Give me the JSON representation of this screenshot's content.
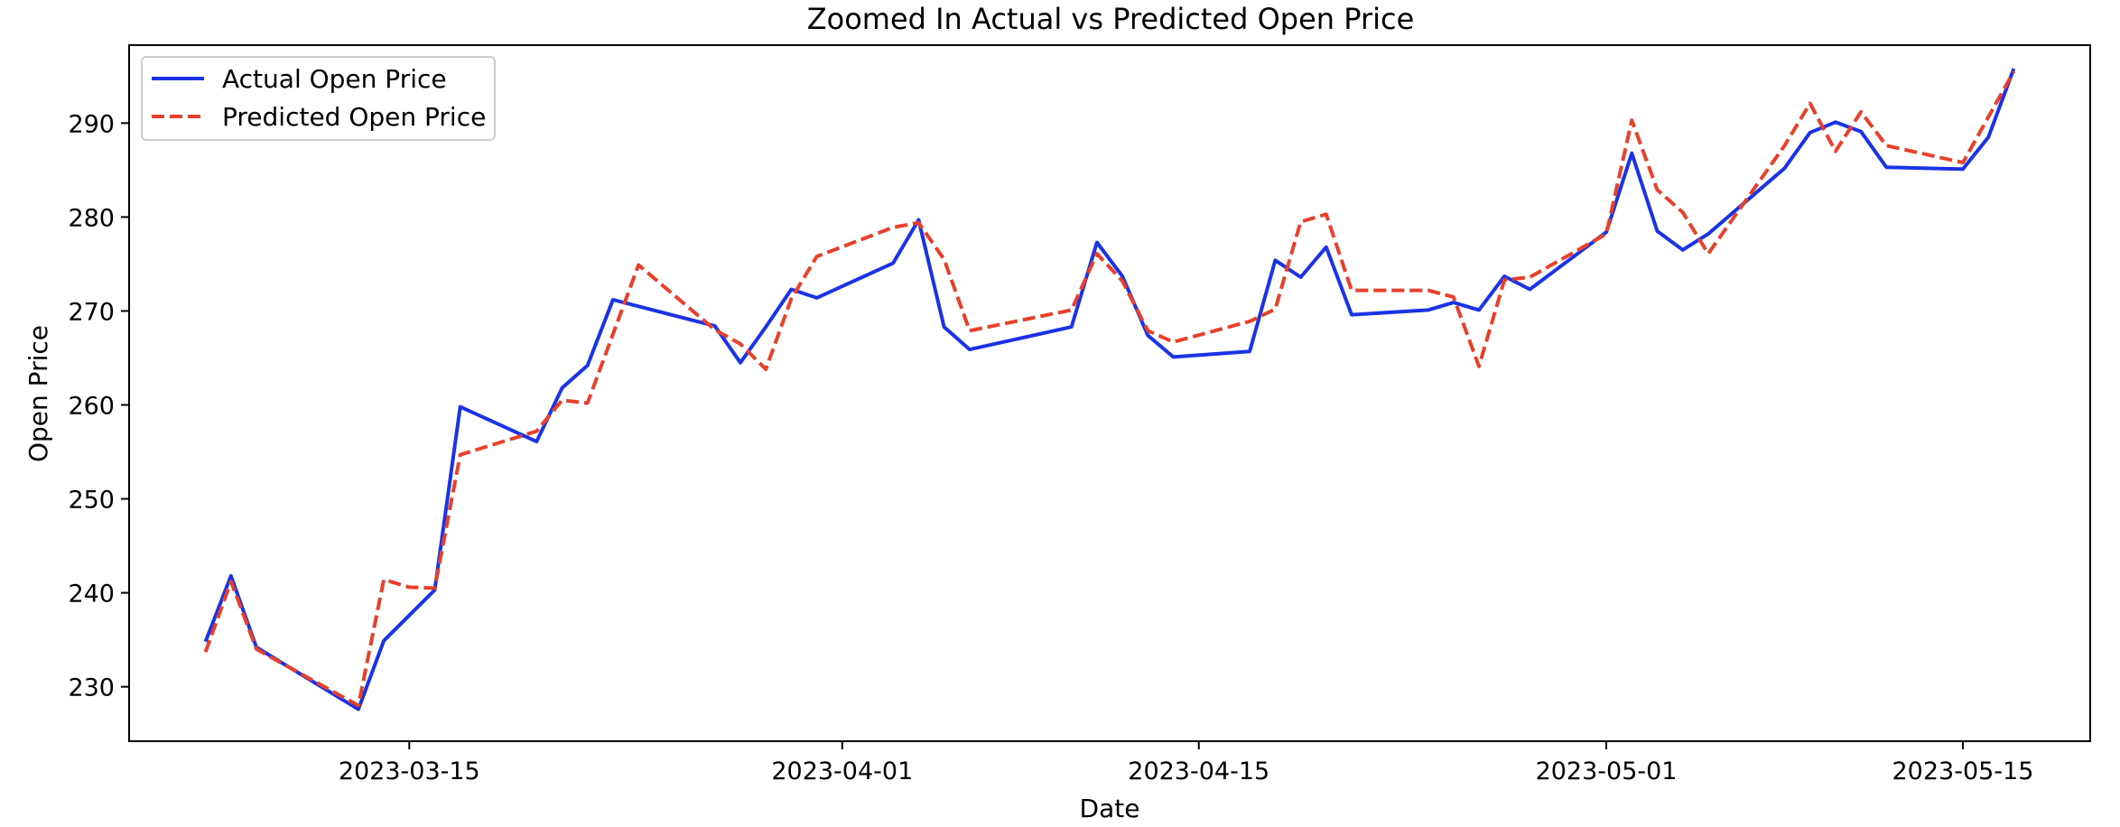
{
  "chart_data": {
    "type": "line",
    "title": "Zoomed In Actual vs Predicted Open Price",
    "xlabel": "Date",
    "ylabel": "Open Price",
    "xlim": [
      "2023-03-04",
      "2023-05-20"
    ],
    "ylim": [
      224.2,
      298.3
    ],
    "x_ticks": [
      "2023-03-15",
      "2023-04-01",
      "2023-04-15",
      "2023-05-01",
      "2023-05-15"
    ],
    "y_ticks": [
      230,
      240,
      250,
      260,
      270,
      280,
      290
    ],
    "grid": false,
    "legend_position": "top-left",
    "series": [
      {
        "name": "Actual Open Price",
        "color": "#1a33e6",
        "style": "solid",
        "points": [
          [
            "2023-03-07",
            234.8
          ],
          [
            "2023-03-08",
            241.8
          ],
          [
            "2023-03-09",
            234.2
          ],
          [
            "2023-03-13",
            227.6
          ],
          [
            "2023-03-14",
            234.9
          ],
          [
            "2023-03-15",
            237.6
          ],
          [
            "2023-03-16",
            240.3
          ],
          [
            "2023-03-17",
            259.8
          ],
          [
            "2023-03-20",
            256.1
          ],
          [
            "2023-03-21",
            261.8
          ],
          [
            "2023-03-22",
            264.2
          ],
          [
            "2023-03-23",
            271.2
          ],
          [
            "2023-03-24",
            270.5
          ],
          [
            "2023-03-27",
            268.4
          ],
          [
            "2023-03-28",
            264.5
          ],
          [
            "2023-03-29",
            268.3
          ],
          [
            "2023-03-30",
            272.3
          ],
          [
            "2023-03-31",
            271.4
          ],
          [
            "2023-04-03",
            275.1
          ],
          [
            "2023-04-04",
            279.7
          ],
          [
            "2023-04-05",
            268.3
          ],
          [
            "2023-04-06",
            265.9
          ],
          [
            "2023-04-10",
            268.3
          ],
          [
            "2023-04-11",
            277.3
          ],
          [
            "2023-04-12",
            273.7
          ],
          [
            "2023-04-13",
            267.4
          ],
          [
            "2023-04-14",
            265.1
          ],
          [
            "2023-04-17",
            265.7
          ],
          [
            "2023-04-18",
            275.4
          ],
          [
            "2023-04-19",
            273.6
          ],
          [
            "2023-04-20",
            276.8
          ],
          [
            "2023-04-21",
            269.6
          ],
          [
            "2023-04-24",
            270.1
          ],
          [
            "2023-04-25",
            270.9
          ],
          [
            "2023-04-26",
            270.1
          ],
          [
            "2023-04-27",
            273.7
          ],
          [
            "2023-04-28",
            272.3
          ],
          [
            "2023-05-01",
            278.4
          ],
          [
            "2023-05-02",
            286.8
          ],
          [
            "2023-05-03",
            278.5
          ],
          [
            "2023-05-04",
            276.5
          ],
          [
            "2023-05-05",
            278.2
          ],
          [
            "2023-05-08",
            285.2
          ],
          [
            "2023-05-09",
            289.0
          ],
          [
            "2023-05-10",
            290.1
          ],
          [
            "2023-05-11",
            289.1
          ],
          [
            "2023-05-12",
            285.3
          ],
          [
            "2023-05-15",
            285.1
          ],
          [
            "2023-05-16",
            288.5
          ],
          [
            "2023-05-17",
            295.8
          ]
        ]
      },
      {
        "name": "Predicted Open Price",
        "color": "#e8402a",
        "style": "dashed",
        "points": [
          [
            "2023-03-07",
            233.7
          ],
          [
            "2023-03-08",
            241.2
          ],
          [
            "2023-03-09",
            234.0
          ],
          [
            "2023-03-13",
            228.0
          ],
          [
            "2023-03-14",
            241.4
          ],
          [
            "2023-03-15",
            240.6
          ],
          [
            "2023-03-16",
            240.5
          ],
          [
            "2023-03-17",
            254.7
          ],
          [
            "2023-03-20",
            257.2
          ],
          [
            "2023-03-21",
            260.5
          ],
          [
            "2023-03-22",
            260.2
          ],
          [
            "2023-03-24",
            274.9
          ],
          [
            "2023-03-27",
            268.0
          ],
          [
            "2023-03-28",
            266.5
          ],
          [
            "2023-03-29",
            263.8
          ],
          [
            "2023-03-30",
            271.3
          ],
          [
            "2023-03-31",
            275.8
          ],
          [
            "2023-04-03",
            278.9
          ],
          [
            "2023-04-04",
            279.4
          ],
          [
            "2023-04-05",
            275.5
          ],
          [
            "2023-04-06",
            267.9
          ],
          [
            "2023-04-10",
            270.1
          ],
          [
            "2023-04-11",
            276.1
          ],
          [
            "2023-04-12",
            273.2
          ],
          [
            "2023-04-13",
            267.9
          ],
          [
            "2023-04-14",
            266.7
          ],
          [
            "2023-04-17",
            268.9
          ],
          [
            "2023-04-18",
            270.2
          ],
          [
            "2023-04-19",
            279.5
          ],
          [
            "2023-04-20",
            280.3
          ],
          [
            "2023-04-21",
            272.2
          ],
          [
            "2023-04-24",
            272.2
          ],
          [
            "2023-04-25",
            271.5
          ],
          [
            "2023-04-26",
            264.1
          ],
          [
            "2023-04-27",
            273.3
          ],
          [
            "2023-04-28",
            273.6
          ],
          [
            "2023-05-01",
            278.2
          ],
          [
            "2023-05-02",
            290.3
          ],
          [
            "2023-05-03",
            282.9
          ],
          [
            "2023-05-04",
            280.5
          ],
          [
            "2023-05-05",
            276.1
          ],
          [
            "2023-05-08",
            287.6
          ],
          [
            "2023-05-09",
            292.1
          ],
          [
            "2023-05-10",
            287.0
          ],
          [
            "2023-05-11",
            291.2
          ],
          [
            "2023-05-12",
            287.6
          ],
          [
            "2023-05-15",
            285.8
          ],
          [
            "2023-05-17",
            295.5
          ]
        ]
      }
    ]
  }
}
